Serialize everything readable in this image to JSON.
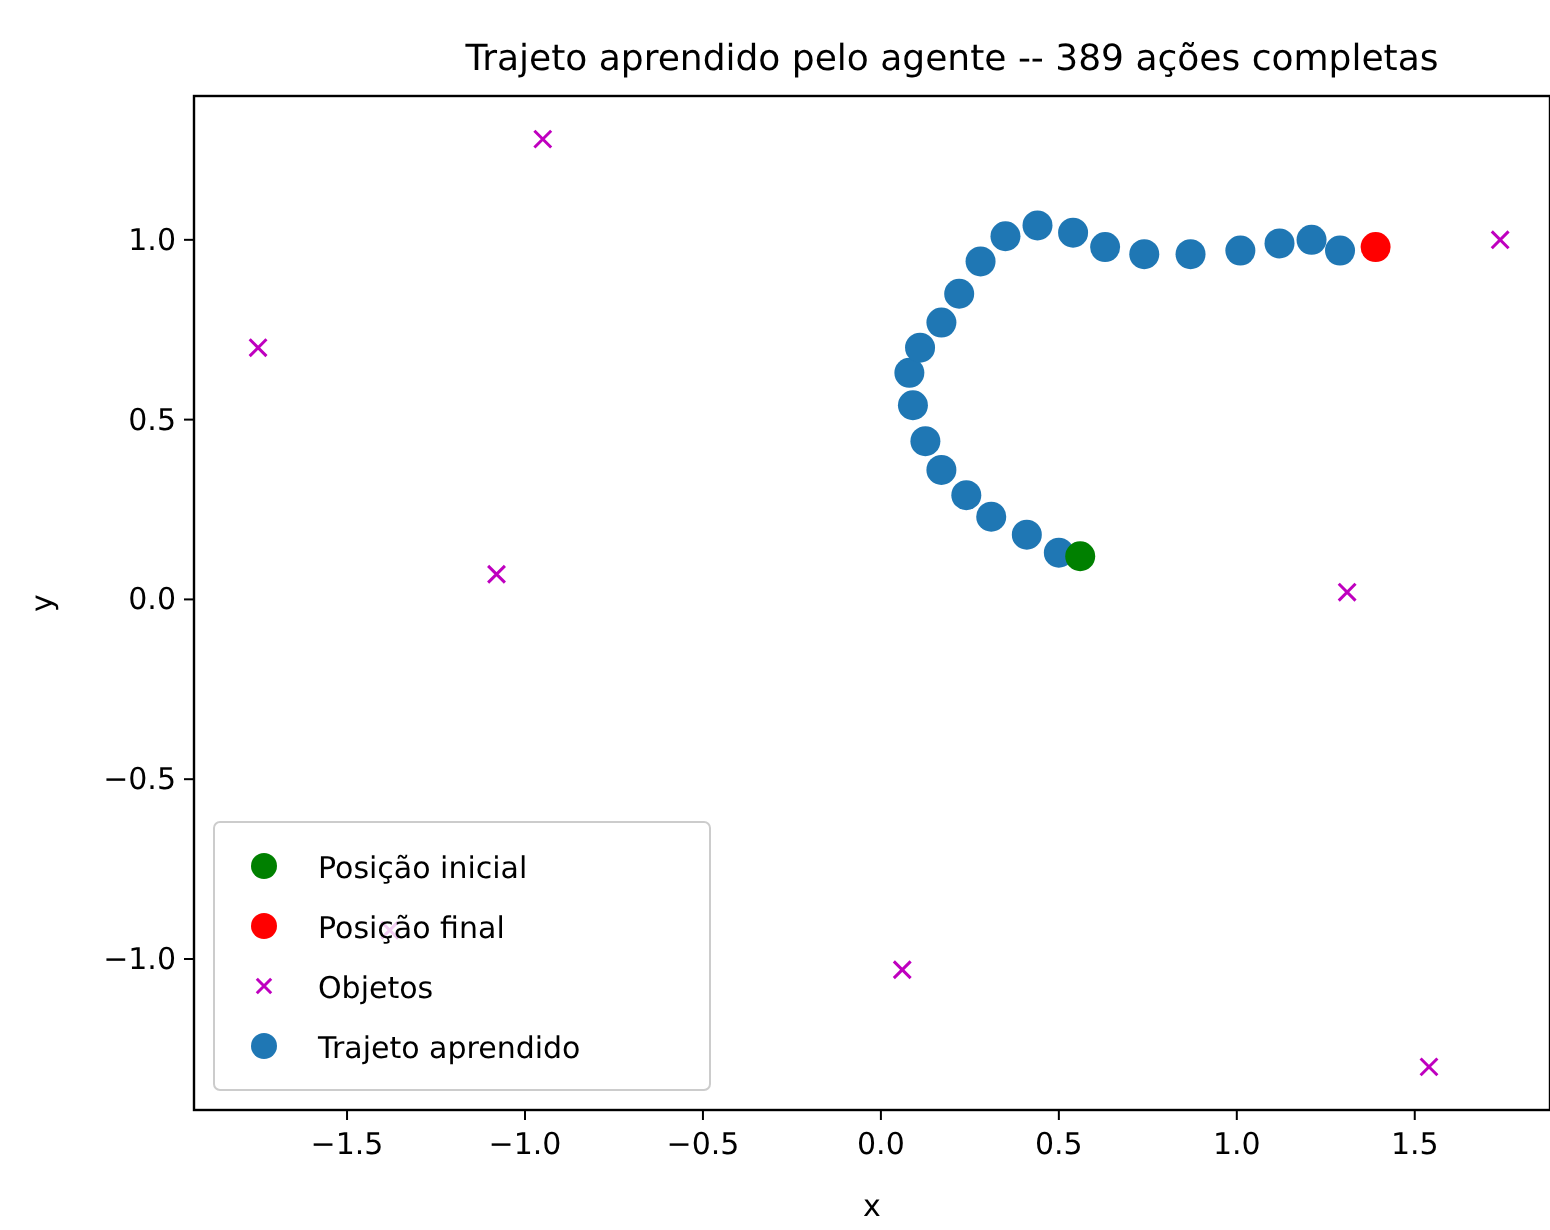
{
  "chart_data": {
    "type": "scatter",
    "title": "Trajeto aprendido pelo agente -- 389 ações completas",
    "xlabel": "x",
    "ylabel": "y",
    "xlim": [
      -1.93,
      1.88
    ],
    "ylim": [
      -1.42,
      1.4
    ],
    "xticks": [
      {
        "value": -1.5,
        "label": "−1.5"
      },
      {
        "value": -1.0,
        "label": "−1.0"
      },
      {
        "value": -0.5,
        "label": "−0.5"
      },
      {
        "value": 0,
        "label": "0.0"
      },
      {
        "value": 0.5,
        "label": "0.5"
      },
      {
        "value": 1.0,
        "label": "1.0"
      },
      {
        "value": 1.5,
        "label": "1.5"
      }
    ],
    "yticks": [
      {
        "value": -1.0,
        "label": "−1.0"
      },
      {
        "value": -0.5,
        "label": "−0.5"
      },
      {
        "value": 0,
        "label": "0.0"
      },
      {
        "value": 0.5,
        "label": "0.5"
      },
      {
        "value": 1.0,
        "label": "1.0"
      }
    ],
    "legend": "bottom left",
    "grid": false,
    "series": [
      {
        "name": "Posição inicial",
        "color": "#008000",
        "marker": "circle",
        "x": [
          0.56
        ],
        "values": [
          0.12
        ]
      },
      {
        "name": "Posição final",
        "color": "#ff0000",
        "marker": "circle",
        "x": [
          1.39
        ],
        "values": [
          0.98
        ]
      },
      {
        "name": "Objetos",
        "color": "#bf00bf",
        "marker": "cross",
        "x": [
          -0.95,
          -1.75,
          -1.08,
          -1.38,
          0.06,
          1.31,
          1.74,
          1.54
        ],
        "values": [
          1.28,
          0.7,
          0.07,
          -0.92,
          -1.03,
          0.02,
          1.0,
          -1.3
        ]
      },
      {
        "name": "Trajeto aprendido",
        "color": "#1f77b4",
        "marker": "circle",
        "x": [
          0.5,
          0.41,
          0.31,
          0.24,
          0.17,
          0.125,
          0.09,
          0.08,
          0.11,
          0.17,
          0.22,
          0.28,
          0.35,
          0.44,
          0.54,
          0.63,
          0.74,
          0.87,
          1.01,
          1.12,
          1.21,
          1.29
        ],
        "values": [
          0.13,
          0.18,
          0.23,
          0.29,
          0.36,
          0.44,
          0.54,
          0.63,
          0.7,
          0.77,
          0.85,
          0.94,
          1.01,
          1.04,
          1.02,
          0.98,
          0.96,
          0.96,
          0.97,
          0.99,
          1.0,
          0.97
        ]
      }
    ]
  }
}
